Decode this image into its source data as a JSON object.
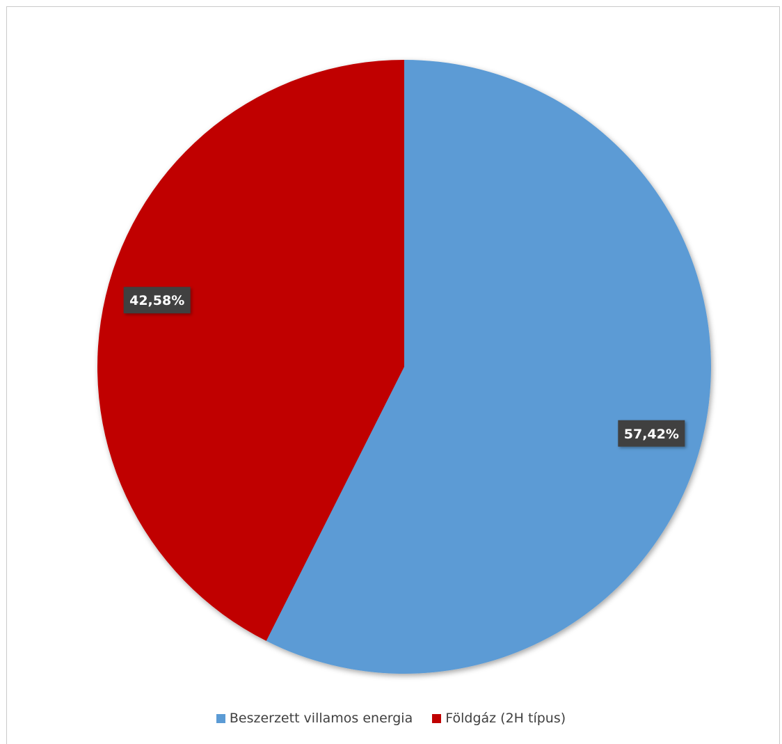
{
  "chart_data": {
    "type": "pie",
    "slices": [
      {
        "label": "Beszerzett villamos energia",
        "value": 57.42,
        "display": "57,42%",
        "color": "#5b9bd5"
      },
      {
        "label": "Földgáz (2H típus)",
        "value": 42.58,
        "display": "42,58%",
        "color": "#c00000"
      }
    ],
    "start": "12 o'clock",
    "direction": "clockwise",
    "legend_position": "bottom",
    "data_label_style": "white bold text on dark gray box"
  }
}
